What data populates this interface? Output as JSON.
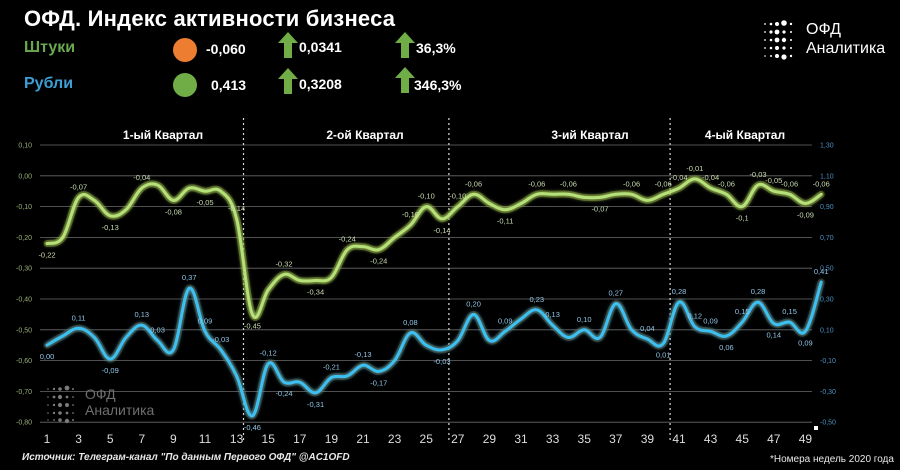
{
  "header": {
    "title": "ОФД. Индекс активности бизнеса",
    "rows": [
      {
        "label": "Штуки",
        "indicator_color": "#ed7d31",
        "value": "-0,060",
        "change_abs": "0,0341",
        "change_pct": "36,3%",
        "label_color": "#6aa84f"
      },
      {
        "label": "Рубли",
        "indicator_color": "#70ad47",
        "value": "0,413",
        "change_abs": "0,3208",
        "change_pct": "346,3%",
        "label_color": "#3c9fd6"
      }
    ],
    "arrow_color": "#70ad47"
  },
  "logo": {
    "line1": "ОФД",
    "line2": "Аналитика"
  },
  "watermark": {
    "line1": "ОФД",
    "line2": "Аналитика"
  },
  "footer": {
    "source": "Источник: Телеграм-канал \"По данным Первого ОФД\" @AC1OFD",
    "note": "*Номера недель 2020 года"
  },
  "chart_data": {
    "type": "line",
    "title": "ОФД. Индекс активности бизнеса",
    "xlabel": "Номера недель 2020 года",
    "x_ticks": [
      1,
      3,
      5,
      7,
      9,
      11,
      13,
      15,
      17,
      19,
      21,
      23,
      25,
      27,
      29,
      31,
      33,
      35,
      37,
      39,
      41,
      43,
      45,
      47,
      49
    ],
    "quarters": [
      {
        "label": "1-ый Квартал",
        "from_week": 1,
        "to_week": 13
      },
      {
        "label": "2-ой Квартал",
        "from_week": 14,
        "to_week": 26
      },
      {
        "label": "3-ий Квартал",
        "from_week": 27,
        "to_week": 40
      },
      {
        "label": "4-ый Квартал",
        "from_week": 41,
        "to_week": 50
      }
    ],
    "quarter_separators_weeks": [
      13.5,
      26.5,
      40.5
    ],
    "left_axis": {
      "series": "Штуки",
      "ticks": [
        "0,10",
        "0,00",
        "-0,10",
        "-0,20",
        "-0,30",
        "-0,40",
        "-0,50",
        "-0,60",
        "-0,70",
        "-0,80"
      ],
      "ylim": [
        -0.8,
        0.1
      ]
    },
    "right_axis": {
      "series": "Рубли",
      "ticks": [
        "1,30",
        "1,10",
        "0,90",
        "0,70",
        "0,50",
        "0,30",
        "0,10",
        "-0,10",
        "-0,30",
        "-0,50"
      ],
      "ylim": [
        -0.5,
        1.3
      ]
    },
    "grid": true,
    "legend": "none",
    "series": [
      {
        "name": "Штуки",
        "axis": "left",
        "color": "#a9d46f",
        "points": [
          {
            "week": 1,
            "value": -0.22,
            "label": "-0,22"
          },
          {
            "week": 2,
            "value": -0.2
          },
          {
            "week": 3,
            "value": -0.07,
            "label": "-0,07"
          },
          {
            "week": 4,
            "value": -0.08
          },
          {
            "week": 5,
            "value": -0.13,
            "label": "-0,13"
          },
          {
            "week": 6,
            "value": -0.11
          },
          {
            "week": 7,
            "value": -0.04,
            "label": "-0,04"
          },
          {
            "week": 8,
            "value": -0.03
          },
          {
            "week": 9,
            "value": -0.08,
            "label": "-0,08"
          },
          {
            "week": 10,
            "value": -0.04
          },
          {
            "week": 11,
            "value": -0.05,
            "label": "-0,05"
          },
          {
            "week": 12,
            "value": -0.05
          },
          {
            "week": 13,
            "value": -0.14,
            "label": "-0,14"
          },
          {
            "week": 14,
            "value": -0.45,
            "label": "-0,45"
          },
          {
            "week": 15,
            "value": -0.37
          },
          {
            "week": 16,
            "value": -0.32,
            "label": "-0,32"
          },
          {
            "week": 17,
            "value": -0.34
          },
          {
            "week": 18,
            "value": -0.34,
            "label": "-0,34"
          },
          {
            "week": 19,
            "value": -0.33
          },
          {
            "week": 20,
            "value": -0.24,
            "label": "-0,24"
          },
          {
            "week": 21,
            "value": -0.23
          },
          {
            "week": 22,
            "value": -0.24,
            "label": "-0,24"
          },
          {
            "week": 23,
            "value": -0.2
          },
          {
            "week": 24,
            "value": -0.16,
            "label": "-0,16"
          },
          {
            "week": 25,
            "value": -0.1,
            "label": "-0,10"
          },
          {
            "week": 26,
            "value": -0.14,
            "label": "-0,14"
          },
          {
            "week": 27,
            "value": -0.1,
            "label": "-0,10"
          },
          {
            "week": 28,
            "value": -0.06,
            "label": "-0,06"
          },
          {
            "week": 29,
            "value": -0.09
          },
          {
            "week": 30,
            "value": -0.11,
            "label": "-0,11"
          },
          {
            "week": 31,
            "value": -0.09
          },
          {
            "week": 32,
            "value": -0.06,
            "label": "-0,06"
          },
          {
            "week": 33,
            "value": -0.06
          },
          {
            "week": 34,
            "value": -0.06,
            "label": "-0,06"
          },
          {
            "week": 35,
            "value": -0.07
          },
          {
            "week": 36,
            "value": -0.07,
            "label": "-0,07"
          },
          {
            "week": 37,
            "value": -0.06
          },
          {
            "week": 38,
            "value": -0.06,
            "label": "-0,06"
          },
          {
            "week": 39,
            "value": -0.08
          },
          {
            "week": 40,
            "value": -0.06,
            "label": "-0,06"
          },
          {
            "week": 41,
            "value": -0.04,
            "label": "-0,04"
          },
          {
            "week": 42,
            "value": -0.01,
            "label": "-0,01"
          },
          {
            "week": 43,
            "value": -0.04,
            "label": "-0,04"
          },
          {
            "week": 44,
            "value": -0.06,
            "label": "-0,06"
          },
          {
            "week": 45,
            "value": -0.1,
            "label": "-0,1"
          },
          {
            "week": 46,
            "value": -0.03,
            "label": "-0,03"
          },
          {
            "week": 47,
            "value": -0.05,
            "label": "-0,05"
          },
          {
            "week": 48,
            "value": -0.06,
            "label": "-0,06"
          },
          {
            "week": 49,
            "value": -0.09,
            "label": "-0,09"
          },
          {
            "week": 50,
            "value": -0.06,
            "label": "-0,06"
          }
        ]
      },
      {
        "name": "Рубли",
        "axis": "right",
        "color": "#3cb4e6",
        "points": [
          {
            "week": 1,
            "value": 0.0,
            "label": "0,00"
          },
          {
            "week": 2,
            "value": 0.06
          },
          {
            "week": 3,
            "value": 0.11,
            "label": "0,11"
          },
          {
            "week": 4,
            "value": 0.05
          },
          {
            "week": 5,
            "value": -0.09,
            "label": "-0,09"
          },
          {
            "week": 6,
            "value": 0.05
          },
          {
            "week": 7,
            "value": 0.13,
            "label": "0,13"
          },
          {
            "week": 8,
            "value": 0.03,
            "label": "0,03"
          },
          {
            "week": 9,
            "value": -0.03
          },
          {
            "week": 10,
            "value": 0.37,
            "label": "0,37"
          },
          {
            "week": 11,
            "value": 0.09,
            "label": "0,09"
          },
          {
            "week": 12,
            "value": -0.03,
            "label": "-0,03"
          },
          {
            "week": 13,
            "value": -0.2
          },
          {
            "week": 14,
            "value": -0.46,
            "label": "-0,46"
          },
          {
            "week": 15,
            "value": -0.12,
            "label": "-0,12"
          },
          {
            "week": 16,
            "value": -0.24,
            "label": "-0,24"
          },
          {
            "week": 17,
            "value": -0.24
          },
          {
            "week": 18,
            "value": -0.31,
            "label": "-0,31"
          },
          {
            "week": 19,
            "value": -0.21,
            "label": "-0,21"
          },
          {
            "week": 20,
            "value": -0.2
          },
          {
            "week": 21,
            "value": -0.13,
            "label": "-0,13"
          },
          {
            "week": 22,
            "value": -0.17,
            "label": "-0,17"
          },
          {
            "week": 23,
            "value": -0.1
          },
          {
            "week": 24,
            "value": 0.08,
            "label": "0,08"
          },
          {
            "week": 25,
            "value": 0.0
          },
          {
            "week": 26,
            "value": -0.03,
            "label": "-0,03"
          },
          {
            "week": 27,
            "value": 0.03
          },
          {
            "week": 28,
            "value": 0.2,
            "label": "0,20"
          },
          {
            "week": 29,
            "value": 0.03
          },
          {
            "week": 30,
            "value": 0.09,
            "label": "0,09"
          },
          {
            "week": 31,
            "value": 0.17
          },
          {
            "week": 32,
            "value": 0.23,
            "label": "0,23"
          },
          {
            "week": 33,
            "value": 0.13,
            "label": "0,13"
          },
          {
            "week": 34,
            "value": 0.05
          },
          {
            "week": 35,
            "value": 0.1,
            "label": "0,10"
          },
          {
            "week": 36,
            "value": 0.05
          },
          {
            "week": 37,
            "value": 0.27,
            "label": "0,27"
          },
          {
            "week": 38,
            "value": 0.1
          },
          {
            "week": 39,
            "value": 0.04,
            "label": "0,04"
          },
          {
            "week": 40,
            "value": 0.01,
            "label": "0,01"
          },
          {
            "week": 41,
            "value": 0.28,
            "label": "0,28"
          },
          {
            "week": 42,
            "value": 0.12,
            "label": "0,12"
          },
          {
            "week": 43,
            "value": 0.09,
            "label": "0,09"
          },
          {
            "week": 44,
            "value": 0.06,
            "label": "0,06"
          },
          {
            "week": 45,
            "value": 0.15,
            "label": "0,15"
          },
          {
            "week": 46,
            "value": 0.28,
            "label": "0,28"
          },
          {
            "week": 47,
            "value": 0.14,
            "label": "0,14"
          },
          {
            "week": 48,
            "value": 0.15,
            "label": "0,15"
          },
          {
            "week": 49,
            "value": 0.09,
            "label": "0,09"
          },
          {
            "week": 50,
            "value": 0.41,
            "label": "0,41"
          }
        ]
      }
    ]
  }
}
